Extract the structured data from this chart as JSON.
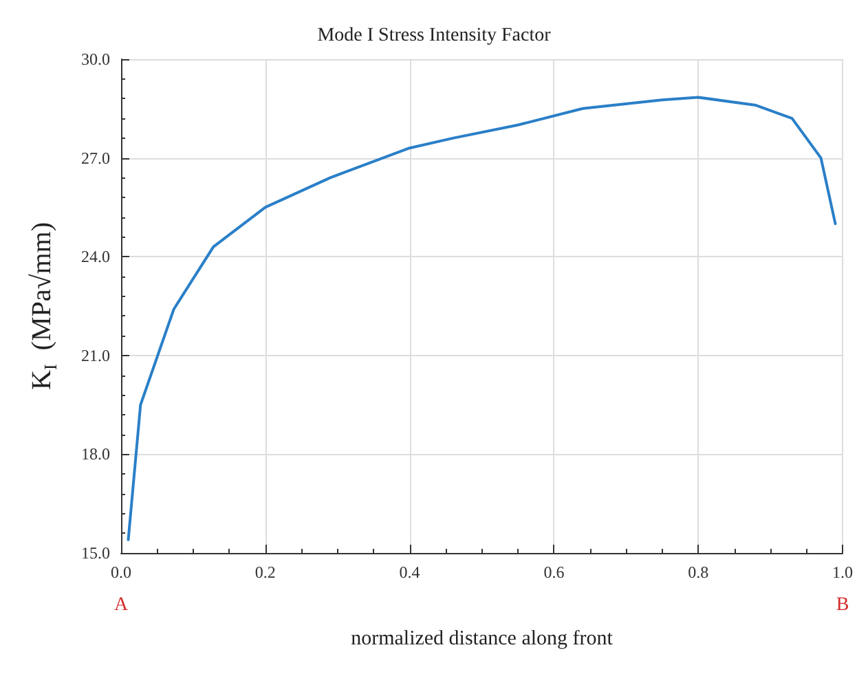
{
  "chart_data": {
    "type": "line",
    "title": "Mode I Stress Intensity Factor",
    "xlabel": "normalized distance along front",
    "ylabel": "K$_{I}$  (MPa√mm)",
    "x": [
      0.01,
      0.027,
      0.073,
      0.128,
      0.2,
      0.29,
      0.4,
      0.46,
      0.55,
      0.64,
      0.75,
      0.8,
      0.88,
      0.93,
      0.97,
      0.99
    ],
    "series": [
      {
        "color": "#2a7fc8",
        "values": [
          15.4,
          19.5,
          22.4,
          24.3,
          25.5,
          26.4,
          27.3,
          27.6,
          28.0,
          28.5,
          28.76,
          28.84,
          28.6,
          28.2,
          27.0,
          25.0
        ]
      }
    ],
    "xlim": [
      0,
      1
    ],
    "ylim": [
      15,
      30
    ],
    "xticks": [
      {
        "value": 0,
        "label": "0.0"
      },
      {
        "value": 0.2,
        "label": "0.2"
      },
      {
        "value": 0.4,
        "label": "0.4"
      },
      {
        "value": 0.6,
        "label": "0.6"
      },
      {
        "value": 0.8,
        "label": "0.8"
      },
      {
        "value": 1,
        "label": "1.0"
      }
    ],
    "yticks": [
      {
        "value": 15,
        "label": "15.0"
      },
      {
        "value": 18,
        "label": "18.0"
      },
      {
        "value": 21,
        "label": "21.0"
      },
      {
        "value": 24,
        "label": "24.0"
      },
      {
        "value": 27,
        "label": "27.0"
      },
      {
        "value": 30,
        "label": "30.0"
      }
    ],
    "annotations": [
      "A",
      "B"
    ],
    "grid": true,
    "marker": "none",
    "line_style": "solid"
  }
}
